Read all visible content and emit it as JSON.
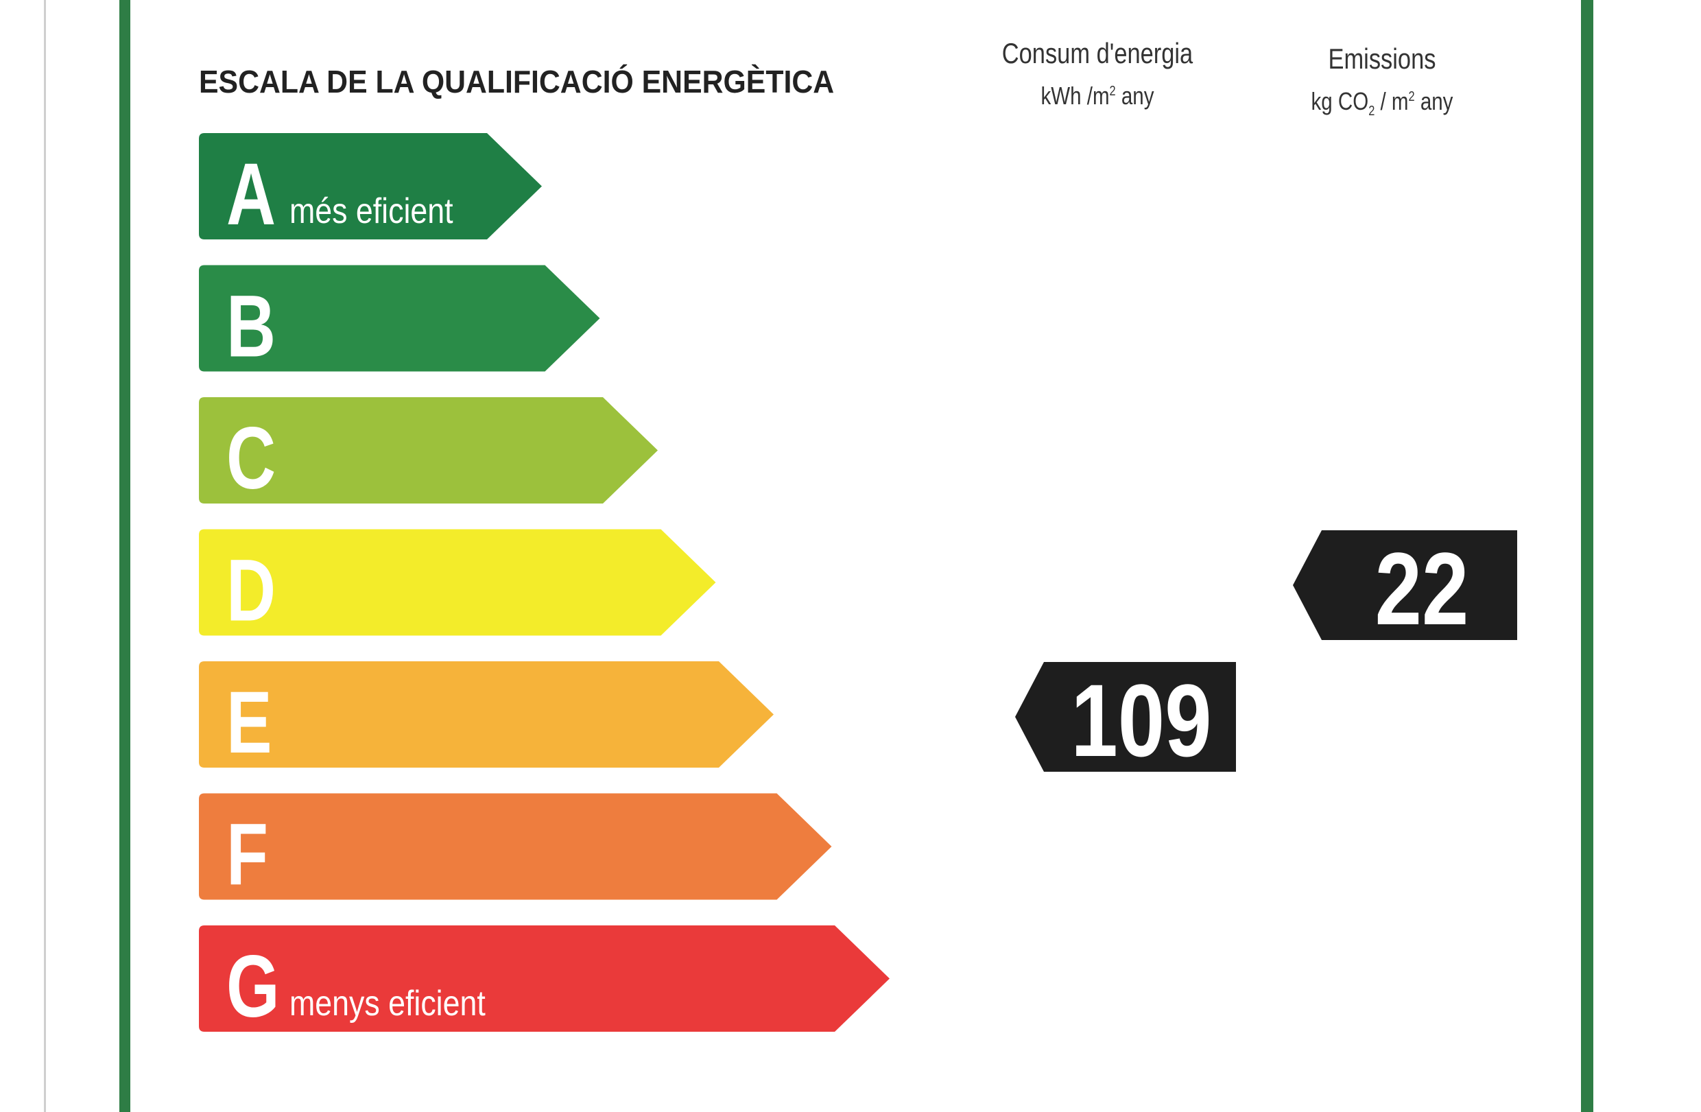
{
  "title": "ESCALA DE LA QUALIFICACIÓ ENERGÈTICA",
  "columns": {
    "energy": {
      "line1": "Consum d'energia",
      "unit_pre": "kWh /m",
      "unit_sup": "2",
      "unit_post": " any"
    },
    "emissions": {
      "line1": "Emissions",
      "unit_pre": "kg CO",
      "unit_sub": "2",
      "unit_mid": " / m",
      "unit_sup": "2",
      "unit_post": " any"
    }
  },
  "ratings": [
    {
      "letter": "A",
      "caption": "més eficient",
      "color": "#1f7f45"
    },
    {
      "letter": "B",
      "caption": "",
      "color": "#2a8c48"
    },
    {
      "letter": "C",
      "caption": "",
      "color": "#9cc13c"
    },
    {
      "letter": "D",
      "caption": "",
      "color": "#f3ec2a"
    },
    {
      "letter": "E",
      "caption": "",
      "color": "#f6b33a"
    },
    {
      "letter": "F",
      "caption": "",
      "color": "#ee7d3e"
    },
    {
      "letter": "G",
      "caption": "menys eficient",
      "color": "#ea3a3a"
    }
  ],
  "results": {
    "energy": {
      "value": "109",
      "rating": "E"
    },
    "emissions": {
      "value": "22",
      "rating": "D"
    }
  },
  "colors": {
    "frame": "#2e7d45",
    "badge": "#1e1e1e",
    "badge_text": "#ffffff"
  }
}
